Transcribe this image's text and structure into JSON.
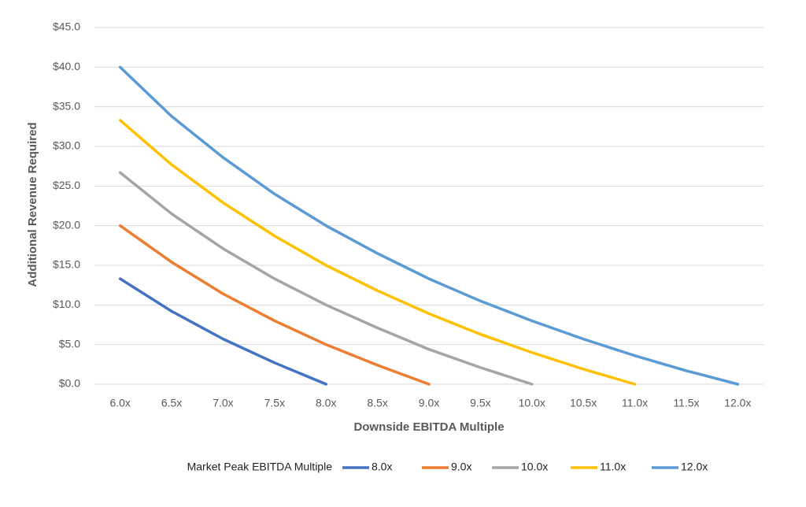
{
  "chart_data": {
    "type": "line",
    "x_label": "Downside EBITDA Multiple",
    "y_label": "Additional Revenue Required",
    "legend_title": "Market Peak EBITDA Multiple",
    "legend": "bottom",
    "grid": true,
    "categories": [
      "6.0x",
      "6.5x",
      "7.0x",
      "7.5x",
      "8.0x",
      "8.5x",
      "9.0x",
      "9.5x",
      "10.0x",
      "10.5x",
      "11.0x",
      "11.5x",
      "12.0x"
    ],
    "ylim": [
      0,
      45
    ],
    "yticks": [
      {
        "value": 0,
        "label": "$0.0"
      },
      {
        "value": 5,
        "label": "$5.0"
      },
      {
        "value": 10,
        "label": "$10.0"
      },
      {
        "value": 15,
        "label": "$15.0"
      },
      {
        "value": 20,
        "label": "$20.0"
      },
      {
        "value": 25,
        "label": "$25.0"
      },
      {
        "value": 30,
        "label": "$30.0"
      },
      {
        "value": 35,
        "label": "$35.0"
      },
      {
        "value": 40,
        "label": "$40.0"
      },
      {
        "value": 45,
        "label": "$45.0"
      }
    ],
    "series": [
      {
        "name": "8.0x",
        "color": "#4472c4",
        "values": [
          13.3,
          9.2,
          5.7,
          2.7,
          0.0,
          null,
          null,
          null,
          null,
          null,
          null,
          null,
          null
        ]
      },
      {
        "name": "9.0x",
        "color": "#ed7d31",
        "values": [
          20.0,
          15.4,
          11.4,
          8.0,
          5.0,
          2.4,
          0.0,
          null,
          null,
          null,
          null,
          null,
          null
        ]
      },
      {
        "name": "10.0x",
        "color": "#a5a5a5",
        "values": [
          26.7,
          21.5,
          17.1,
          13.3,
          10.0,
          7.1,
          4.4,
          2.1,
          0.0,
          null,
          null,
          null,
          null
        ]
      },
      {
        "name": "11.0x",
        "color": "#ffc000",
        "values": [
          33.3,
          27.7,
          22.9,
          18.7,
          15.0,
          11.8,
          8.9,
          6.3,
          4.0,
          1.9,
          0.0,
          null,
          null
        ]
      },
      {
        "name": "12.0x",
        "color": "#5b9bd5",
        "values": [
          40.0,
          33.8,
          28.6,
          24.0,
          20.0,
          16.5,
          13.3,
          10.5,
          8.0,
          5.7,
          3.6,
          1.7,
          0.0
        ]
      }
    ]
  }
}
